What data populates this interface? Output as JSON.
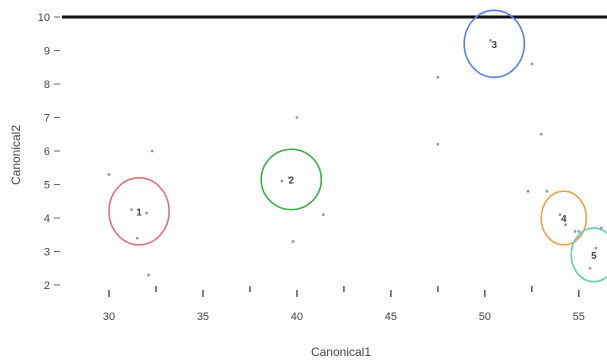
{
  "chart_data": {
    "type": "scatter",
    "xlabel": "Canonical1",
    "ylabel": "Canonical2",
    "xlim": [
      27.5,
      56.5
    ],
    "ylim": [
      2,
      10
    ],
    "x_ticks": [
      30,
      35,
      40,
      45,
      50,
      55
    ],
    "x_tick_labels": [
      "30",
      "35",
      "40",
      "45",
      "50",
      "55"
    ],
    "y_ticks": [
      2,
      3,
      4,
      5,
      6,
      7,
      8,
      9,
      10
    ],
    "y_tick_labels": [
      "2",
      "3",
      "4",
      "5",
      "6",
      "7",
      "8",
      "9",
      "10"
    ],
    "grid": false,
    "top_border": true,
    "groups": [
      {
        "label": "1",
        "color": "#e0707a",
        "center": [
          31.6,
          4.2
        ],
        "radius_x": 1.6,
        "radius_y": 1.0,
        "points": [
          [
            31.2,
            4.25
          ],
          [
            32.0,
            4.15
          ],
          [
            32.3,
            6.0
          ],
          [
            30.0,
            5.3
          ],
          [
            32.1,
            2.3
          ],
          [
            31.5,
            3.4
          ]
        ]
      },
      {
        "label": "2",
        "color": "#3cb04a",
        "center": [
          39.7,
          5.15
        ],
        "radius_x": 1.6,
        "radius_y": 0.9,
        "points": [
          [
            39.6,
            5.2
          ],
          [
            40.0,
            7.0
          ],
          [
            41.4,
            4.1
          ],
          [
            39.8,
            3.3
          ],
          [
            39.2,
            5.1
          ]
        ]
      },
      {
        "label": "3",
        "color": "#5b7fe6",
        "center": [
          50.5,
          9.2
        ],
        "radius_x": 1.6,
        "radius_y": 1.0,
        "points": [
          [
            50.3,
            9.3
          ],
          [
            52.5,
            8.6
          ],
          [
            47.5,
            8.2
          ],
          [
            53.0,
            6.5
          ],
          [
            47.5,
            6.2
          ]
        ]
      },
      {
        "label": "4",
        "color": "#f0a04a",
        "center": [
          54.2,
          4.0
        ],
        "radius_x": 1.2,
        "radius_y": 0.8,
        "points": [
          [
            54.0,
            4.1
          ],
          [
            54.3,
            3.8
          ],
          [
            52.3,
            4.8
          ],
          [
            53.3,
            4.8
          ],
          [
            54.8,
            3.6
          ]
        ]
      },
      {
        "label": "5",
        "color": "#5fd0b0",
        "center": [
          55.8,
          2.9
        ],
        "radius_x": 1.2,
        "radius_y": 0.8,
        "points": [
          [
            55.9,
            3.1
          ],
          [
            55.6,
            2.5
          ],
          [
            56.2,
            3.7
          ],
          [
            55.0,
            3.6
          ]
        ]
      }
    ]
  }
}
